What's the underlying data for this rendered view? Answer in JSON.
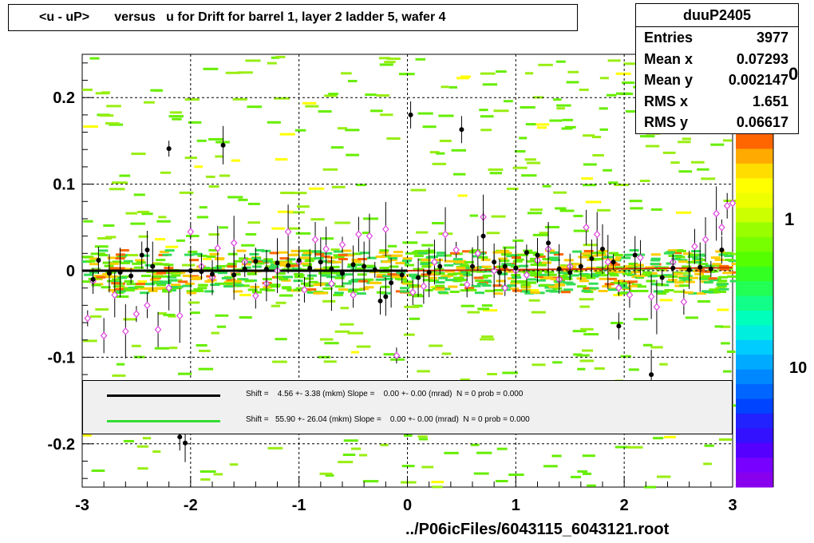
{
  "title": "<u - uP>       versus   u for Drift for barrel 1, layer 2 ladder 5, wafer 4",
  "stats": {
    "name": "duuP2405",
    "rows": [
      {
        "label": "Entries",
        "value": "3977"
      },
      {
        "label": "Mean x",
        "value": "0.07293"
      },
      {
        "label": "Mean y",
        "value": "0.002147"
      },
      {
        "label": "RMS x",
        "value": "1.651"
      },
      {
        "label": "RMS y",
        "value": "0.06617"
      }
    ]
  },
  "footer": "../P06icFiles/6043115_6043121.root",
  "palette_labels": [
    "1",
    "10",
    "0"
  ],
  "legend": [
    {
      "color": "#000000",
      "text": "Shift =    4.56 +- 3.38 (mkm) Slope =    0.00 +- 0.00 (mrad)  N = 0 prob = 0.000"
    },
    {
      "color": "#33dd33",
      "text": "Shift =   55.90 +- 26.04 (mkm) Slope =    0.00 +- 0.00 (mrad)  N = 0 prob = 0.000"
    }
  ],
  "chart_data": {
    "type": "scatter",
    "xlim": [
      -3,
      3
    ],
    "ylim": [
      -0.25,
      0.25
    ],
    "x_ticks": [
      -3,
      -2,
      -1,
      0,
      1,
      2,
      3
    ],
    "y_ticks": [
      -0.2,
      -0.1,
      0,
      0.1,
      0.2
    ],
    "x_tick_labels": [
      "-3",
      "-2",
      "-1",
      "0",
      "1",
      "2",
      "3"
    ],
    "y_tick_labels": [
      "-0.2",
      "-0.1",
      "0",
      "0.1",
      "0.2"
    ],
    "grid": true,
    "colors": {
      "black_series": "#000000",
      "pink_series": "#dd44dd",
      "fit_black": "#000000",
      "fit_green": "#33dd33"
    },
    "series": [
      {
        "marker": "filled-circle",
        "color": "#000000",
        "points": [
          [
            -2.9,
            -0.01
          ],
          [
            -2.85,
            0.012
          ],
          [
            -2.75,
            -0.003
          ],
          [
            -2.65,
            -0.002
          ],
          [
            -2.55,
            -0.006
          ],
          [
            -2.45,
            0.018
          ],
          [
            -2.4,
            0.024
          ],
          [
            -2.35,
            0.005
          ],
          [
            -2.2,
            0.141
          ],
          [
            -2.1,
            -0.192
          ],
          [
            -2.05,
            -0.199
          ],
          [
            -2.0,
            0.0
          ],
          [
            -1.9,
            -0.001
          ],
          [
            -1.8,
            -0.004
          ],
          [
            -1.7,
            0.145
          ],
          [
            -1.6,
            -0.005
          ],
          [
            -1.5,
            0.002
          ],
          [
            -1.4,
            0.011
          ],
          [
            -1.3,
            0.002
          ],
          [
            -1.2,
            0.009
          ],
          [
            -1.1,
            0.006
          ],
          [
            -1.0,
            0.012
          ],
          [
            -0.9,
            0.003
          ],
          [
            -0.8,
            0.01
          ],
          [
            -0.7,
            0.002
          ],
          [
            -0.6,
            -0.003
          ],
          [
            -0.5,
            0.007
          ],
          [
            -0.4,
            0.005
          ],
          [
            -0.3,
            0.001
          ],
          [
            -0.25,
            -0.035
          ],
          [
            -0.2,
            -0.03
          ],
          [
            -0.15,
            -0.014
          ],
          [
            -0.05,
            -0.005
          ],
          [
            0.03,
            0.18
          ],
          [
            0.1,
            -0.008
          ],
          [
            0.2,
            -0.002
          ],
          [
            0.3,
            0.005
          ],
          [
            0.5,
            0.163
          ],
          [
            0.6,
            0.005
          ],
          [
            0.7,
            0.04
          ],
          [
            0.8,
            0.01
          ],
          [
            0.85,
            -0.002
          ],
          [
            0.9,
            0.005
          ],
          [
            1.0,
            0.003
          ],
          [
            1.1,
            0.021
          ],
          [
            1.2,
            0.018
          ],
          [
            1.3,
            0.032
          ],
          [
            1.4,
            0.002
          ],
          [
            1.5,
            -0.002
          ],
          [
            1.6,
            0.005
          ],
          [
            1.7,
            0.014
          ],
          [
            1.8,
            0.025
          ],
          [
            1.9,
            0.01
          ],
          [
            1.95,
            -0.064
          ],
          [
            2.1,
            0.018
          ],
          [
            2.25,
            -0.12
          ],
          [
            2.35,
            -0.008
          ],
          [
            2.45,
            0.003
          ],
          [
            2.6,
            0.001
          ],
          [
            2.7,
            0.004
          ],
          [
            2.8,
            0.002
          ],
          [
            2.9,
            0.024
          ]
        ]
      },
      {
        "marker": "open-diamond",
        "color": "#dd44dd",
        "points": [
          [
            -2.95,
            -0.055
          ],
          [
            -2.9,
            -0.012
          ],
          [
            -2.8,
            -0.075
          ],
          [
            -2.7,
            -0.028
          ],
          [
            -2.6,
            -0.07
          ],
          [
            -2.5,
            -0.05
          ],
          [
            -2.4,
            -0.04
          ],
          [
            -2.3,
            -0.068
          ],
          [
            -2.2,
            -0.02
          ],
          [
            -2.1,
            -0.052
          ],
          [
            -2.0,
            0.045
          ],
          [
            -1.9,
            0.005
          ],
          [
            -1.8,
            -0.008
          ],
          [
            -1.75,
            0.026
          ],
          [
            -1.6,
            0.032
          ],
          [
            -1.5,
            0.01
          ],
          [
            -1.4,
            -0.029
          ],
          [
            -1.3,
            -0.015
          ],
          [
            -1.2,
            0.0
          ],
          [
            -1.1,
            0.045
          ],
          [
            -1.0,
            0.01
          ],
          [
            -0.95,
            -0.022
          ],
          [
            -0.85,
            0.036
          ],
          [
            -0.75,
            0.025
          ],
          [
            -0.7,
            -0.015
          ],
          [
            -0.6,
            0.03
          ],
          [
            -0.5,
            -0.028
          ],
          [
            -0.45,
            0.042
          ],
          [
            -0.35,
            0.04
          ],
          [
            -0.2,
            0.048
          ],
          [
            -0.1,
            -0.098
          ],
          [
            0.05,
            -0.025
          ],
          [
            0.15,
            -0.018
          ],
          [
            0.25,
            0.01
          ],
          [
            0.35,
            0.042
          ],
          [
            0.45,
            0.024
          ],
          [
            0.55,
            -0.016
          ],
          [
            0.65,
            0.02
          ],
          [
            0.7,
            0.062
          ],
          [
            0.8,
            0.0
          ],
          [
            0.9,
            -0.02
          ],
          [
            1.0,
            0.0
          ],
          [
            1.1,
            -0.005
          ],
          [
            1.2,
            0.012
          ],
          [
            1.3,
            0.025
          ],
          [
            1.4,
            -0.01
          ],
          [
            1.5,
            0.005
          ],
          [
            1.65,
            0.05
          ],
          [
            1.75,
            0.042
          ],
          [
            1.85,
            0.01
          ],
          [
            1.95,
            -0.02
          ],
          [
            2.05,
            -0.028
          ],
          [
            2.15,
            0.015
          ],
          [
            2.25,
            -0.03
          ],
          [
            2.3,
            -0.042
          ],
          [
            2.45,
            0.01
          ],
          [
            2.55,
            -0.036
          ],
          [
            2.65,
            0.028
          ],
          [
            2.75,
            0.036
          ],
          [
            2.85,
            0.066
          ],
          [
            2.9,
            0.05
          ],
          [
            2.95,
            0.075
          ],
          [
            3.0,
            0.078
          ]
        ]
      }
    ]
  }
}
